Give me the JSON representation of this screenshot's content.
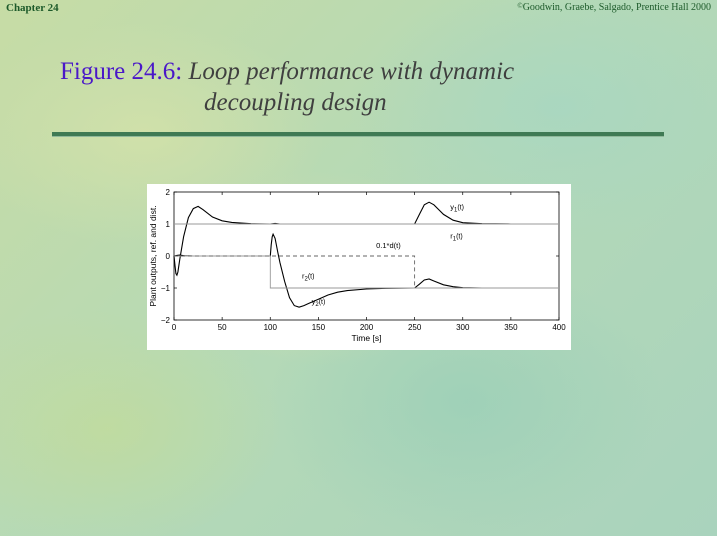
{
  "header": {
    "chapter": "Chapter 24",
    "copyright_symbol": "©",
    "copyright": "Goodwin, Graebe, Salgado, Prentice Hall 2000"
  },
  "title": {
    "label": "Figure 24.6:",
    "line1": "Loop performance with dynamic",
    "line2": "decoupling design"
  },
  "colors": {
    "title_label": "#4a18c8",
    "title_text": "#3f3f3f",
    "header_text": "#1d5a2a",
    "rule": "#3f7a54",
    "background": "#bcd9a6"
  },
  "chart_data": {
    "type": "line",
    "xlabel": "Time [s]",
    "ylabel": "Plant outputs, ref. and dist.",
    "xlim": [
      0,
      400
    ],
    "ylim": [
      -2,
      2
    ],
    "xticks": [
      0,
      50,
      100,
      150,
      200,
      250,
      300,
      350,
      400
    ],
    "yticks": [
      -2,
      -1,
      0,
      1,
      2
    ],
    "grid": false,
    "series": [
      {
        "name": "y_1(t)",
        "style": "solid",
        "color": "#000000",
        "x": [
          0,
          1,
          2,
          3,
          4,
          6,
          10,
          15,
          20,
          25,
          30,
          40,
          50,
          60,
          80,
          100,
          105,
          110,
          120,
          150,
          200,
          250,
          255,
          260,
          265,
          270,
          275,
          280,
          290,
          300,
          320,
          350,
          400
        ],
        "y": [
          0,
          -0.3,
          -0.55,
          -0.6,
          -0.5,
          -0.1,
          0.6,
          1.2,
          1.48,
          1.55,
          1.45,
          1.22,
          1.1,
          1.05,
          1.01,
          1.0,
          1.02,
          1.0,
          1.0,
          1.0,
          1.0,
          1.0,
          1.3,
          1.6,
          1.68,
          1.6,
          1.45,
          1.3,
          1.12,
          1.04,
          1.01,
          1.0,
          1.0
        ]
      },
      {
        "name": "y_2(t)",
        "style": "solid",
        "color": "#000000",
        "x": [
          0,
          3,
          6,
          10,
          20,
          50,
          100,
          101,
          102,
          103,
          105,
          108,
          110,
          115,
          120,
          125,
          130,
          135,
          140,
          150,
          160,
          170,
          180,
          200,
          220,
          250,
          255,
          260,
          265,
          270,
          280,
          290,
          300,
          320,
          400
        ],
        "y": [
          0,
          0.02,
          0.03,
          0.01,
          0,
          0,
          0,
          0.35,
          0.6,
          0.68,
          0.55,
          0.1,
          -0.2,
          -0.8,
          -1.3,
          -1.55,
          -1.6,
          -1.55,
          -1.48,
          -1.35,
          -1.22,
          -1.13,
          -1.08,
          -1.03,
          -1.01,
          -1.0,
          -0.88,
          -0.75,
          -0.72,
          -0.78,
          -0.9,
          -0.96,
          -0.99,
          -1.0,
          -1.0
        ]
      },
      {
        "name": "r_1(t)",
        "style": "solid",
        "color": "#999999",
        "x": [
          0,
          400
        ],
        "y": [
          1,
          1
        ]
      },
      {
        "name": "r_2(t)",
        "style": "solid",
        "color": "#999999",
        "x": [
          0,
          100,
          100,
          400
        ],
        "y": [
          0,
          0,
          -1,
          -1
        ]
      },
      {
        "name": "0.1*d(t)",
        "style": "dashed",
        "color": "#666666",
        "x": [
          0,
          250,
          250
        ],
        "y": [
          0,
          0,
          -1
        ]
      }
    ],
    "annotations": [
      {
        "key": "y1",
        "base": "y",
        "sub": "1",
        "suffix": "(t)",
        "x": 287,
        "y": 1.45
      },
      {
        "key": "r1",
        "base": "r",
        "sub": "1",
        "suffix": "(t)",
        "x": 287,
        "y": 0.55
      },
      {
        "key": "d",
        "base": "0.1*d",
        "sub": "",
        "suffix": "(t)",
        "x": 210,
        "y": 0.25
      },
      {
        "key": "r2",
        "base": "r",
        "sub": "2",
        "suffix": "(t)",
        "x": 133,
        "y": -0.7
      },
      {
        "key": "y2",
        "base": "y",
        "sub": "2",
        "suffix": "(t)",
        "x": 143,
        "y": -1.5
      }
    ]
  }
}
